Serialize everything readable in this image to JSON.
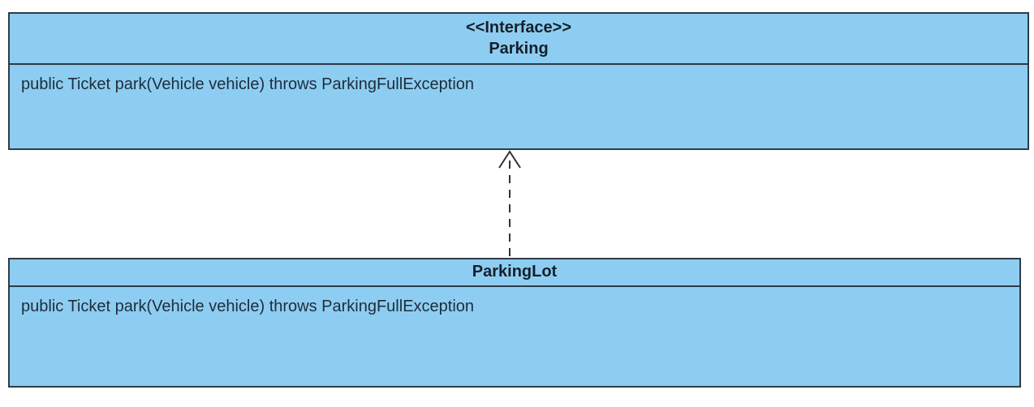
{
  "interface": {
    "stereotype": "<<Interface>>",
    "name": "Parking",
    "method": "public Ticket park(Vehicle vehicle) throws ParkingFullException"
  },
  "implementation": {
    "name": "ParkingLot",
    "method": "public Ticket park(Vehicle vehicle) throws ParkingFullException"
  },
  "colors": {
    "box_fill": "#8ecdf2",
    "border": "#2f3b45",
    "arrow": "#333333"
  },
  "relationship": {
    "type": "realization",
    "from": "ParkingLot",
    "to": "Parking"
  }
}
